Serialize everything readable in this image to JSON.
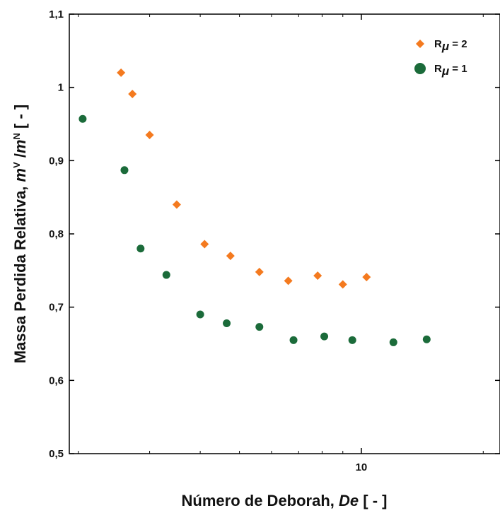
{
  "chart_data": {
    "type": "scatter",
    "xlabel": "Número de Deborah, De [ - ]",
    "xlabel_parts": [
      "Número de Deborah, ",
      "De",
      " [ - ]"
    ],
    "ylabel": "Massa Perdida Relativa, mV /mN [ - ]",
    "ylabel_parts": [
      "Massa Perdida Relativa, ",
      "m",
      "V",
      " /",
      "m",
      "N",
      " [ - ]"
    ],
    "x_scale": "log",
    "xlim": [
      1.9,
      22
    ],
    "ylim": [
      0.5,
      1.1
    ],
    "x_ticks": [
      {
        "value": 10,
        "label": "10"
      }
    ],
    "y_ticks": [
      {
        "value": 0.5,
        "label": "0,5"
      },
      {
        "value": 0.6,
        "label": "0,6"
      },
      {
        "value": 0.7,
        "label": "0,7"
      },
      {
        "value": 0.8,
        "label": "0,8"
      },
      {
        "value": 0.9,
        "label": "0,9"
      },
      {
        "value": 1.0,
        "label": "1"
      },
      {
        "value": 1.1,
        "label": "1,1"
      }
    ],
    "legend_position": "top-right",
    "series": [
      {
        "name": "Rμ = 2",
        "name_parts": [
          "R",
          "μ",
          " = 2"
        ],
        "marker": "diamond",
        "color": "#F47A1F",
        "points": [
          {
            "x": 2.55,
            "y": 1.02
          },
          {
            "x": 2.72,
            "y": 0.991
          },
          {
            "x": 3.0,
            "y": 0.935
          },
          {
            "x": 3.5,
            "y": 0.84
          },
          {
            "x": 4.1,
            "y": 0.786
          },
          {
            "x": 4.75,
            "y": 0.77
          },
          {
            "x": 5.6,
            "y": 0.748
          },
          {
            "x": 6.6,
            "y": 0.736
          },
          {
            "x": 7.8,
            "y": 0.743
          },
          {
            "x": 9.0,
            "y": 0.731
          },
          {
            "x": 10.3,
            "y": 0.741
          }
        ]
      },
      {
        "name": "Rμ = 1",
        "name_parts": [
          "R",
          "μ",
          " = 1"
        ],
        "marker": "circle",
        "color": "#1B6B3A",
        "points": [
          {
            "x": 2.05,
            "y": 0.957
          },
          {
            "x": 2.6,
            "y": 0.887
          },
          {
            "x": 2.85,
            "y": 0.78
          },
          {
            "x": 3.3,
            "y": 0.744
          },
          {
            "x": 4.0,
            "y": 0.69
          },
          {
            "x": 4.65,
            "y": 0.678
          },
          {
            "x": 5.6,
            "y": 0.673
          },
          {
            "x": 6.8,
            "y": 0.655
          },
          {
            "x": 8.1,
            "y": 0.66
          },
          {
            "x": 9.5,
            "y": 0.655
          },
          {
            "x": 12.0,
            "y": 0.652
          },
          {
            "x": 14.5,
            "y": 0.656
          }
        ]
      }
    ]
  }
}
